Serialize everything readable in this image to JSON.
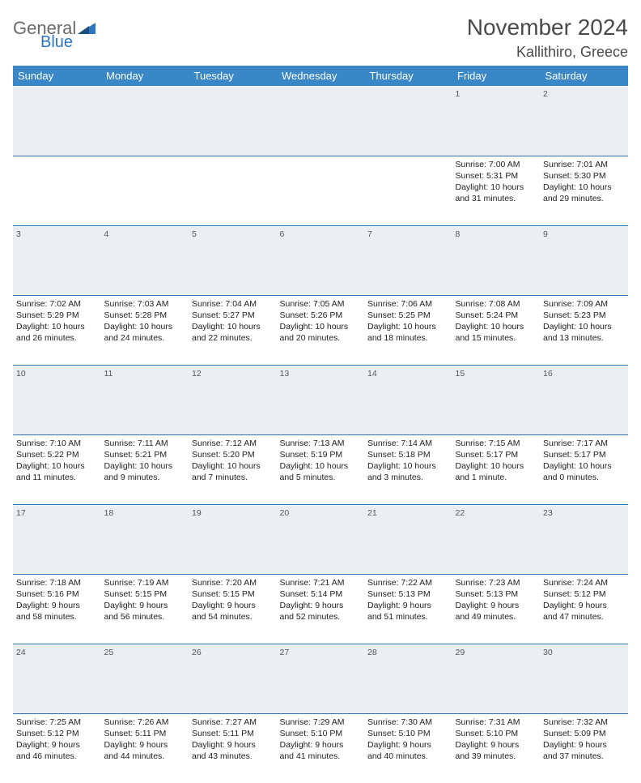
{
  "logo": {
    "word1": "General",
    "word2": "Blue"
  },
  "title": "November 2024",
  "location": "Kallithiro, Greece",
  "colors": {
    "header_bg": "#3a87c8",
    "header_text": "#ffffff",
    "border": "#2d75bb",
    "daynum_bg": "#eceff1",
    "text": "#222222",
    "logo_gray": "#6a6a6a",
    "logo_blue": "#2d75bb"
  },
  "daysOfWeek": [
    "Sunday",
    "Monday",
    "Tuesday",
    "Wednesday",
    "Thursday",
    "Friday",
    "Saturday"
  ],
  "weeks": [
    [
      null,
      null,
      null,
      null,
      null,
      {
        "n": "1",
        "sr": "Sunrise: 7:00 AM",
        "ss": "Sunset: 5:31 PM",
        "d1": "Daylight: 10 hours",
        "d2": "and 31 minutes."
      },
      {
        "n": "2",
        "sr": "Sunrise: 7:01 AM",
        "ss": "Sunset: 5:30 PM",
        "d1": "Daylight: 10 hours",
        "d2": "and 29 minutes."
      }
    ],
    [
      {
        "n": "3",
        "sr": "Sunrise: 7:02 AM",
        "ss": "Sunset: 5:29 PM",
        "d1": "Daylight: 10 hours",
        "d2": "and 26 minutes."
      },
      {
        "n": "4",
        "sr": "Sunrise: 7:03 AM",
        "ss": "Sunset: 5:28 PM",
        "d1": "Daylight: 10 hours",
        "d2": "and 24 minutes."
      },
      {
        "n": "5",
        "sr": "Sunrise: 7:04 AM",
        "ss": "Sunset: 5:27 PM",
        "d1": "Daylight: 10 hours",
        "d2": "and 22 minutes."
      },
      {
        "n": "6",
        "sr": "Sunrise: 7:05 AM",
        "ss": "Sunset: 5:26 PM",
        "d1": "Daylight: 10 hours",
        "d2": "and 20 minutes."
      },
      {
        "n": "7",
        "sr": "Sunrise: 7:06 AM",
        "ss": "Sunset: 5:25 PM",
        "d1": "Daylight: 10 hours",
        "d2": "and 18 minutes."
      },
      {
        "n": "8",
        "sr": "Sunrise: 7:08 AM",
        "ss": "Sunset: 5:24 PM",
        "d1": "Daylight: 10 hours",
        "d2": "and 15 minutes."
      },
      {
        "n": "9",
        "sr": "Sunrise: 7:09 AM",
        "ss": "Sunset: 5:23 PM",
        "d1": "Daylight: 10 hours",
        "d2": "and 13 minutes."
      }
    ],
    [
      {
        "n": "10",
        "sr": "Sunrise: 7:10 AM",
        "ss": "Sunset: 5:22 PM",
        "d1": "Daylight: 10 hours",
        "d2": "and 11 minutes."
      },
      {
        "n": "11",
        "sr": "Sunrise: 7:11 AM",
        "ss": "Sunset: 5:21 PM",
        "d1": "Daylight: 10 hours",
        "d2": "and 9 minutes."
      },
      {
        "n": "12",
        "sr": "Sunrise: 7:12 AM",
        "ss": "Sunset: 5:20 PM",
        "d1": "Daylight: 10 hours",
        "d2": "and 7 minutes."
      },
      {
        "n": "13",
        "sr": "Sunrise: 7:13 AM",
        "ss": "Sunset: 5:19 PM",
        "d1": "Daylight: 10 hours",
        "d2": "and 5 minutes."
      },
      {
        "n": "14",
        "sr": "Sunrise: 7:14 AM",
        "ss": "Sunset: 5:18 PM",
        "d1": "Daylight: 10 hours",
        "d2": "and 3 minutes."
      },
      {
        "n": "15",
        "sr": "Sunrise: 7:15 AM",
        "ss": "Sunset: 5:17 PM",
        "d1": "Daylight: 10 hours",
        "d2": "and 1 minute."
      },
      {
        "n": "16",
        "sr": "Sunrise: 7:17 AM",
        "ss": "Sunset: 5:17 PM",
        "d1": "Daylight: 10 hours",
        "d2": "and 0 minutes."
      }
    ],
    [
      {
        "n": "17",
        "sr": "Sunrise: 7:18 AM",
        "ss": "Sunset: 5:16 PM",
        "d1": "Daylight: 9 hours",
        "d2": "and 58 minutes."
      },
      {
        "n": "18",
        "sr": "Sunrise: 7:19 AM",
        "ss": "Sunset: 5:15 PM",
        "d1": "Daylight: 9 hours",
        "d2": "and 56 minutes."
      },
      {
        "n": "19",
        "sr": "Sunrise: 7:20 AM",
        "ss": "Sunset: 5:15 PM",
        "d1": "Daylight: 9 hours",
        "d2": "and 54 minutes."
      },
      {
        "n": "20",
        "sr": "Sunrise: 7:21 AM",
        "ss": "Sunset: 5:14 PM",
        "d1": "Daylight: 9 hours",
        "d2": "and 52 minutes."
      },
      {
        "n": "21",
        "sr": "Sunrise: 7:22 AM",
        "ss": "Sunset: 5:13 PM",
        "d1": "Daylight: 9 hours",
        "d2": "and 51 minutes."
      },
      {
        "n": "22",
        "sr": "Sunrise: 7:23 AM",
        "ss": "Sunset: 5:13 PM",
        "d1": "Daylight: 9 hours",
        "d2": "and 49 minutes."
      },
      {
        "n": "23",
        "sr": "Sunrise: 7:24 AM",
        "ss": "Sunset: 5:12 PM",
        "d1": "Daylight: 9 hours",
        "d2": "and 47 minutes."
      }
    ],
    [
      {
        "n": "24",
        "sr": "Sunrise: 7:25 AM",
        "ss": "Sunset: 5:12 PM",
        "d1": "Daylight: 9 hours",
        "d2": "and 46 minutes."
      },
      {
        "n": "25",
        "sr": "Sunrise: 7:26 AM",
        "ss": "Sunset: 5:11 PM",
        "d1": "Daylight: 9 hours",
        "d2": "and 44 minutes."
      },
      {
        "n": "26",
        "sr": "Sunrise: 7:27 AM",
        "ss": "Sunset: 5:11 PM",
        "d1": "Daylight: 9 hours",
        "d2": "and 43 minutes."
      },
      {
        "n": "27",
        "sr": "Sunrise: 7:29 AM",
        "ss": "Sunset: 5:10 PM",
        "d1": "Daylight: 9 hours",
        "d2": "and 41 minutes."
      },
      {
        "n": "28",
        "sr": "Sunrise: 7:30 AM",
        "ss": "Sunset: 5:10 PM",
        "d1": "Daylight: 9 hours",
        "d2": "and 40 minutes."
      },
      {
        "n": "29",
        "sr": "Sunrise: 7:31 AM",
        "ss": "Sunset: 5:10 PM",
        "d1": "Daylight: 9 hours",
        "d2": "and 39 minutes."
      },
      {
        "n": "30",
        "sr": "Sunrise: 7:32 AM",
        "ss": "Sunset: 5:09 PM",
        "d1": "Daylight: 9 hours",
        "d2": "and 37 minutes."
      }
    ]
  ]
}
